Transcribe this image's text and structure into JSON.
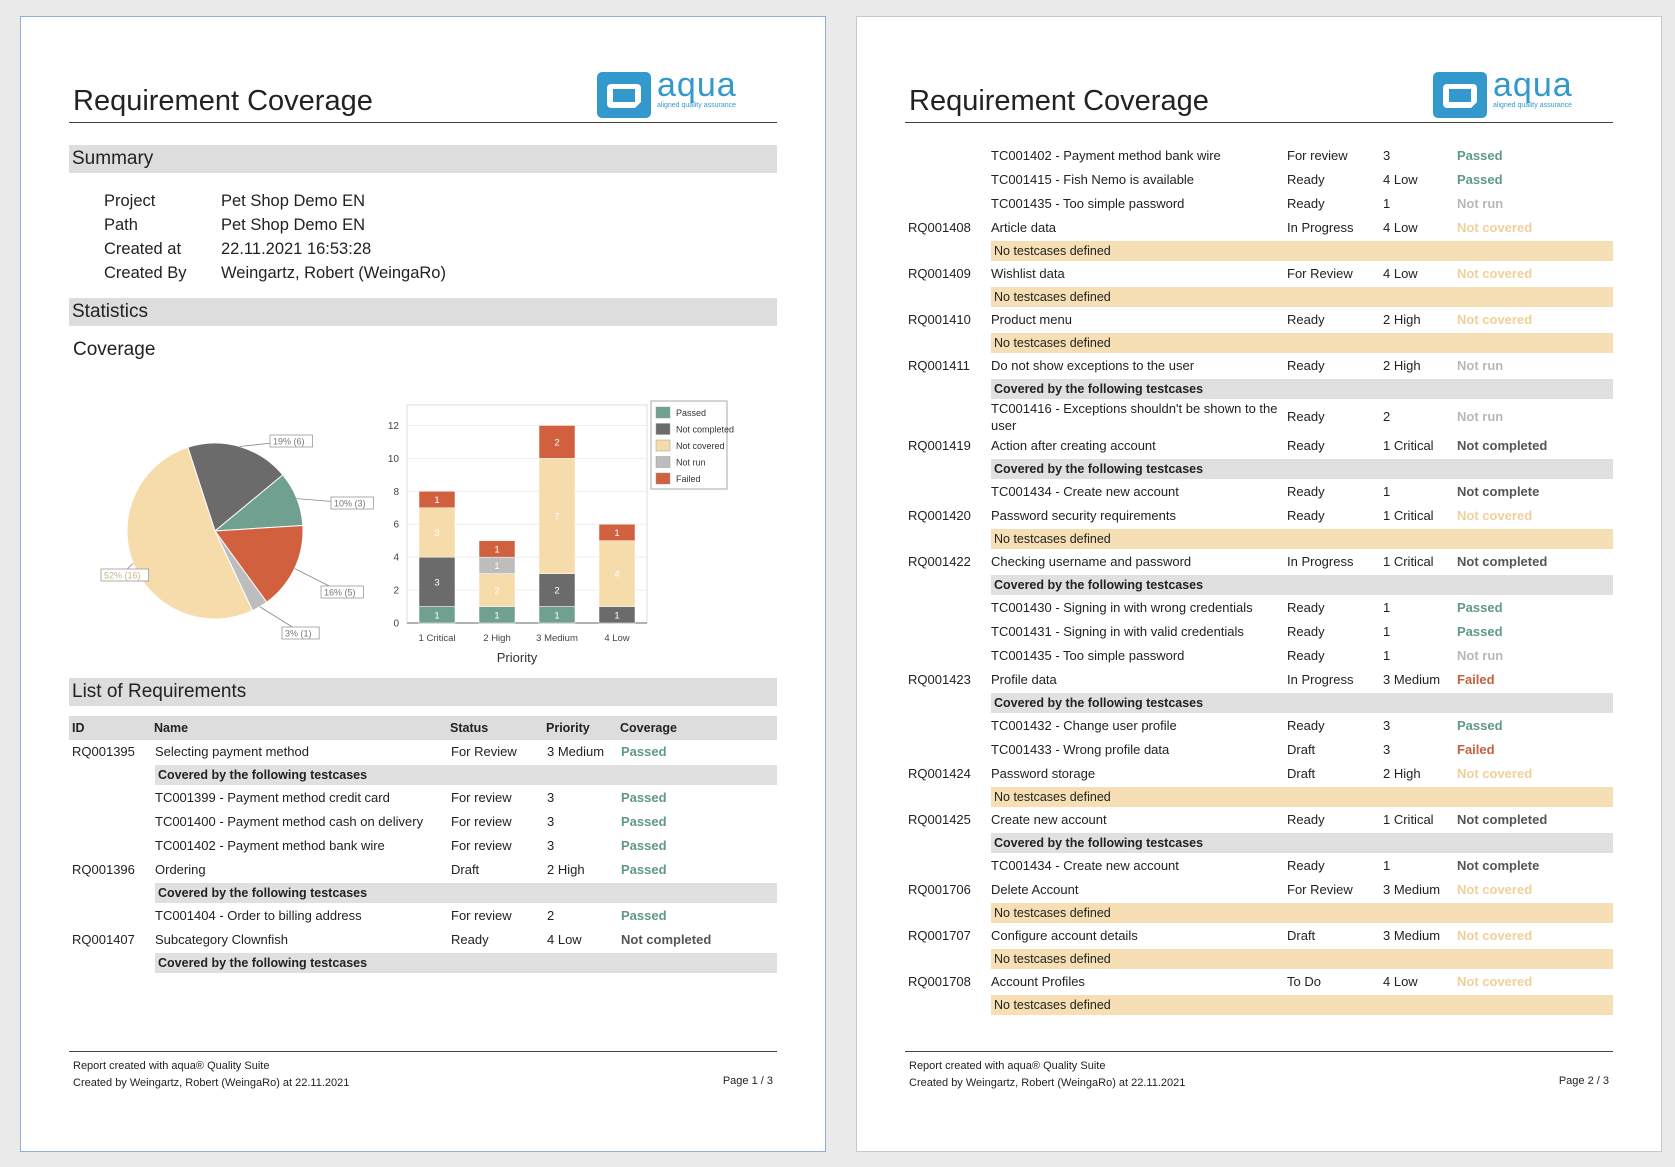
{
  "brand": {
    "name": "aqua",
    "tagline": "aligned quality assurance",
    "color": "#3399cc"
  },
  "page1": {
    "title": "Requirement Coverage",
    "summary": {
      "heading": "Summary",
      "fields": [
        {
          "key": "Project",
          "value": "Pet Shop Demo EN"
        },
        {
          "key": "Path",
          "value": "Pet Shop Demo EN"
        },
        {
          "key": "Created at",
          "value": "22.11.2021 16:53:28"
        },
        {
          "key": "Created By",
          "value": "Weingartz, Robert (WeingaRo)"
        }
      ]
    },
    "statistics": {
      "heading": "Statistics",
      "coverage_heading": "Coverage"
    },
    "list_heading": "List of Requirements",
    "columns": {
      "id": "ID",
      "name": "Name",
      "status": "Status",
      "priority": "Priority",
      "coverage": "Coverage"
    },
    "rows": [
      {
        "type": "req",
        "id": "RQ001395",
        "name": "Selecting payment method",
        "status": "For Review",
        "priority": "3 Medium",
        "coverage": "Passed",
        "cls": "passed"
      },
      {
        "type": "grey",
        "text": "Covered by the following testcases"
      },
      {
        "type": "tc",
        "name": "TC001399 - Payment method credit card",
        "status": "For review",
        "priority": "3",
        "coverage": "Passed",
        "cls": "passed"
      },
      {
        "type": "tc",
        "name": "TC001400 - Payment method cash on delivery",
        "status": "For review",
        "priority": "3",
        "coverage": "Passed",
        "cls": "passed"
      },
      {
        "type": "tc",
        "name": "TC001402 - Payment method bank wire",
        "status": "For review",
        "priority": "3",
        "coverage": "Passed",
        "cls": "passed"
      },
      {
        "type": "req",
        "id": "RQ001396",
        "name": "Ordering",
        "status": "Draft",
        "priority": "2 High",
        "coverage": "Passed",
        "cls": "passed"
      },
      {
        "type": "grey",
        "text": "Covered by the following testcases"
      },
      {
        "type": "tc",
        "name": "TC001404 - Order to billing address",
        "status": "For review",
        "priority": "2",
        "coverage": "Passed",
        "cls": "passed"
      },
      {
        "type": "req",
        "id": "RQ001407",
        "name": "Subcategory Clownfish",
        "status": "Ready",
        "priority": "4 Low",
        "coverage": "Not completed",
        "cls": "notcomp"
      },
      {
        "type": "grey",
        "text": "Covered by the following testcases"
      }
    ],
    "footer": {
      "line1": "Report created with aqua® Quality Suite",
      "line2": "Created by Weingartz, Robert (WeingaRo) at 22.11.2021",
      "page": "Page 1 / 3"
    }
  },
  "page2": {
    "title": "Requirement Coverage",
    "rows": [
      {
        "type": "tc",
        "name": "TC001402 - Payment method bank wire",
        "status": "For review",
        "priority": "3",
        "coverage": "Passed",
        "cls": "passed"
      },
      {
        "type": "tc",
        "name": "TC001415 - Fish Nemo is available",
        "status": "Ready",
        "priority": "4 Low",
        "coverage": "Passed",
        "cls": "passed"
      },
      {
        "type": "tc",
        "name": "TC001435 - Too simple password",
        "status": "Ready",
        "priority": "1",
        "coverage": "Not run",
        "cls": "notrun"
      },
      {
        "type": "req",
        "id": "RQ001408",
        "name": "Article data",
        "status": "In Progress",
        "priority": "4 Low",
        "coverage": "Not covered",
        "cls": "notcov"
      },
      {
        "type": "peach",
        "text": "No testcases defined"
      },
      {
        "type": "req",
        "id": "RQ001409",
        "name": "Wishlist data",
        "status": "For Review",
        "priority": "4 Low",
        "coverage": "Not covered",
        "cls": "notcov"
      },
      {
        "type": "peach",
        "text": "No testcases defined"
      },
      {
        "type": "req",
        "id": "RQ001410",
        "name": "Product menu",
        "status": "Ready",
        "priority": "2 High",
        "coverage": "Not covered",
        "cls": "notcov"
      },
      {
        "type": "peach",
        "text": "No testcases defined"
      },
      {
        "type": "req",
        "id": "RQ001411",
        "name": "Do not show exceptions to the user",
        "status": "Ready",
        "priority": "2 High",
        "coverage": "Not run",
        "cls": "notrun"
      },
      {
        "type": "grey",
        "text": "Covered by the following testcases"
      },
      {
        "type": "tc2",
        "name": "TC001416 - Exceptions shouldn't be shown to the",
        "name2": "user",
        "status": "Ready",
        "priority": "2",
        "coverage": "Not run",
        "cls": "notrun"
      },
      {
        "type": "req",
        "id": "RQ001419",
        "name": "Action after creating account",
        "status": "Ready",
        "priority": "1 Critical",
        "coverage": "Not completed",
        "cls": "notcomp"
      },
      {
        "type": "grey",
        "text": "Covered by the following testcases"
      },
      {
        "type": "tc",
        "name": "TC001434 - Create new account",
        "status": "Ready",
        "priority": "1",
        "coverage": "Not complete",
        "cls": "notcomp"
      },
      {
        "type": "req",
        "id": "RQ001420",
        "name": "Password security requirements",
        "status": "Ready",
        "priority": "1 Critical",
        "coverage": "Not covered",
        "cls": "notcov"
      },
      {
        "type": "peach",
        "text": "No testcases defined"
      },
      {
        "type": "req",
        "id": "RQ001422",
        "name": "Checking username and password",
        "status": "In Progress",
        "priority": "1 Critical",
        "coverage": "Not completed",
        "cls": "notcomp"
      },
      {
        "type": "grey",
        "text": "Covered by the following testcases"
      },
      {
        "type": "tc",
        "name": "TC001430 - Signing in with wrong credentials",
        "status": "Ready",
        "priority": "1",
        "coverage": "Passed",
        "cls": "passed"
      },
      {
        "type": "tc",
        "name": "TC001431 - Signing in with valid credentials",
        "status": "Ready",
        "priority": "1",
        "coverage": "Passed",
        "cls": "passed"
      },
      {
        "type": "tc",
        "name": "TC001435 - Too simple password",
        "status": "Ready",
        "priority": "1",
        "coverage": "Not run",
        "cls": "notrun"
      },
      {
        "type": "req",
        "id": "RQ001423",
        "name": "Profile data",
        "status": "In Progress",
        "priority": "3 Medium",
        "coverage": "Failed",
        "cls": "failed"
      },
      {
        "type": "grey",
        "text": "Covered by the following testcases"
      },
      {
        "type": "tc",
        "name": "TC001432 - Change user profile",
        "status": "Ready",
        "priority": "3",
        "coverage": "Passed",
        "cls": "passed"
      },
      {
        "type": "tc",
        "name": "TC001433 - Wrong profile data",
        "status": "Draft",
        "priority": "3",
        "coverage": "Failed",
        "cls": "failed"
      },
      {
        "type": "req",
        "id": "RQ001424",
        "name": "Password storage",
        "status": "Draft",
        "priority": "2 High",
        "coverage": "Not covered",
        "cls": "notcov"
      },
      {
        "type": "peach",
        "text": "No testcases defined"
      },
      {
        "type": "req",
        "id": "RQ001425",
        "name": "Create new account",
        "status": "Ready",
        "priority": "1 Critical",
        "coverage": "Not completed",
        "cls": "notcomp"
      },
      {
        "type": "grey",
        "text": "Covered by the following testcases"
      },
      {
        "type": "tc",
        "name": "TC001434 - Create new account",
        "status": "Ready",
        "priority": "1",
        "coverage": "Not complete",
        "cls": "notcomp"
      },
      {
        "type": "req",
        "id": "RQ001706",
        "name": "Delete Account",
        "status": "For Review",
        "priority": "3 Medium",
        "coverage": "Not covered",
        "cls": "notcov"
      },
      {
        "type": "peach",
        "text": "No testcases defined"
      },
      {
        "type": "req",
        "id": "RQ001707",
        "name": "Configure account details",
        "status": "Draft",
        "priority": "3 Medium",
        "coverage": "Not covered",
        "cls": "notcov"
      },
      {
        "type": "peach",
        "text": "No testcases defined"
      },
      {
        "type": "req",
        "id": "RQ001708",
        "name": "Account Profiles",
        "status": "To Do",
        "priority": "4 Low",
        "coverage": "Not covered",
        "cls": "notcov"
      },
      {
        "type": "peach",
        "text": "No testcases defined"
      }
    ],
    "footer": {
      "line1": "Report created with aqua® Quality Suite",
      "line2": "Created by Weingartz, Robert (WeingaRo) at 22.11.2021",
      "page": "Page 2 / 3"
    }
  },
  "colors": {
    "passed": "#6fa090",
    "not_completed": "#6b6b6b",
    "not_covered": "#f5dcaa",
    "not_run": "#bdbdbd",
    "failed": "#d0603e"
  },
  "chart_data": [
    {
      "type": "pie",
      "title": "Coverage",
      "slices": [
        {
          "label": "Not completed",
          "percent": 19,
          "count": 6,
          "text": "19% (6)",
          "color": "#6b6b6b"
        },
        {
          "label": "Passed",
          "percent": 10,
          "count": 3,
          "text": "10% (3)",
          "color": "#6fa090"
        },
        {
          "label": "Failed",
          "percent": 16,
          "count": 5,
          "text": "16% (5)",
          "color": "#d0603e"
        },
        {
          "label": "Not run",
          "percent": 3,
          "count": 1,
          "text": "3% (1)",
          "color": "#bdbdbd"
        },
        {
          "label": "Not covered",
          "percent": 52,
          "count": 16,
          "text": "52% (16)",
          "color": "#f5dcaa"
        }
      ]
    },
    {
      "type": "bar",
      "stacked": true,
      "categories": [
        "1 Critical",
        "2 High",
        "3 Medium",
        "4 Low"
      ],
      "xlabel": "Priority",
      "ylim": [
        0,
        13
      ],
      "yticks": [
        0,
        2,
        4,
        6,
        8,
        10,
        12
      ],
      "legend": [
        "Passed",
        "Not completed",
        "Not covered",
        "Not run",
        "Failed"
      ],
      "series": [
        {
          "name": "Passed",
          "values": [
            1,
            1,
            1,
            0
          ],
          "color": "#6fa090"
        },
        {
          "name": "Not completed",
          "values": [
            3,
            0,
            2,
            1
          ],
          "color": "#6b6b6b"
        },
        {
          "name": "Not covered",
          "values": [
            3,
            2,
            7,
            4
          ],
          "color": "#f5dcaa"
        },
        {
          "name": "Not run",
          "values": [
            0,
            1,
            0,
            0
          ],
          "color": "#bdbdbd"
        },
        {
          "name": "Failed",
          "values": [
            1,
            1,
            2,
            1
          ],
          "color": "#d0603e"
        }
      ]
    }
  ]
}
